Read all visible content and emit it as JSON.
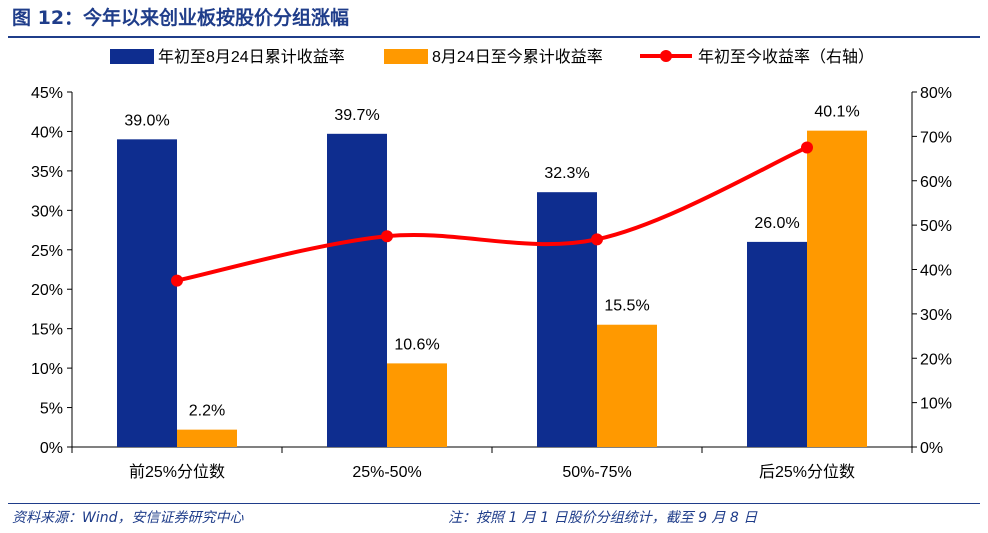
{
  "title": "图 12：今年以来创业板按股价分组涨幅",
  "footer": {
    "source": "资料来源：Wind，安信证券研究中心",
    "note": "注：按照 1 月 1 日股价分组统计，截至 9 月 8 日"
  },
  "chart_data": {
    "type": "bar",
    "categories": [
      "前25%分位数",
      "25%-50%",
      "50%-75%",
      "后25%分位数"
    ],
    "series": [
      {
        "name": "年初至8月24日累计收益率",
        "type": "bar",
        "axis": "left",
        "color": "#0e2d8f",
        "values": [
          39.0,
          39.7,
          32.3,
          26.0
        ],
        "labels": [
          "39.0%",
          "39.7%",
          "32.3%",
          "26.0%"
        ]
      },
      {
        "name": "8月24日至今累计收益率",
        "type": "bar",
        "axis": "left",
        "color": "#ff9900",
        "values": [
          2.2,
          10.6,
          15.5,
          40.1
        ],
        "labels": [
          "2.2%",
          "10.6%",
          "15.5%",
          "40.1%"
        ]
      },
      {
        "name": "年初至今收益率（右轴）",
        "type": "line",
        "axis": "right",
        "color": "#ff0000",
        "values": [
          37.5,
          47.5,
          46.8,
          67.5
        ]
      }
    ],
    "y_left": {
      "min": 0,
      "max": 45,
      "ticks": [
        "0%",
        "5%",
        "10%",
        "15%",
        "20%",
        "25%",
        "30%",
        "35%",
        "40%",
        "45%"
      ]
    },
    "y_right": {
      "min": 0,
      "max": 80,
      "ticks": [
        "0%",
        "10%",
        "20%",
        "30%",
        "40%",
        "50%",
        "60%",
        "70%",
        "80%"
      ]
    },
    "legend_position": "top"
  }
}
